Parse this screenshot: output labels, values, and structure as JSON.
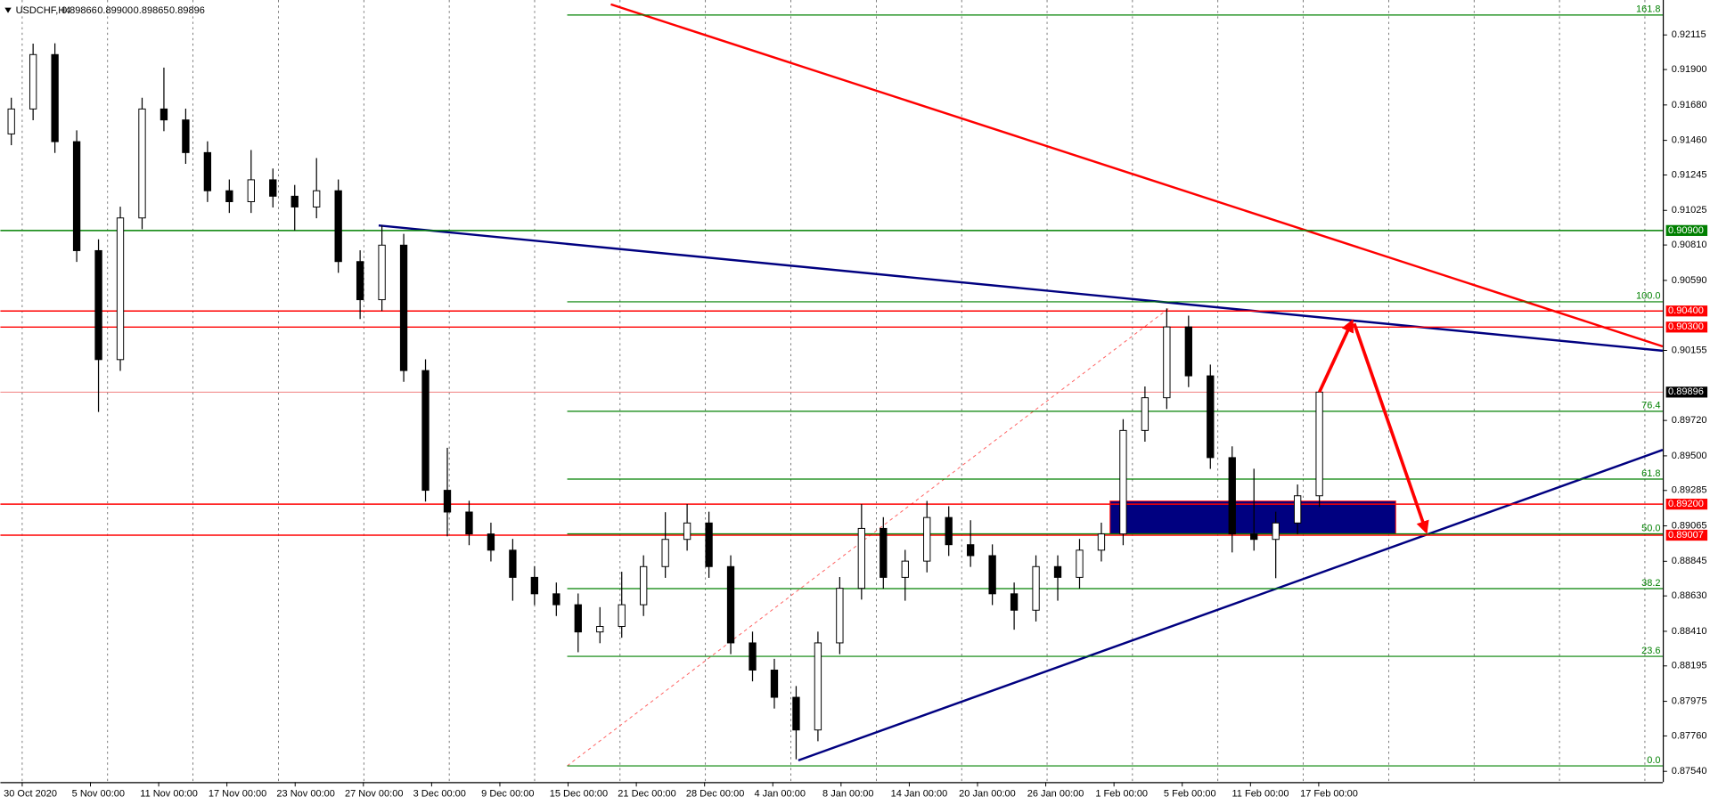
{
  "chart_data": {
    "type": "candlestick",
    "header": {
      "symbol": "USDCHF,H4",
      "quote": [
        "0.89866",
        "0.89900",
        "0.89865",
        "0.89896"
      ]
    },
    "categories": [
      "30 Oct 2020",
      "5 Nov 00:00",
      "11 Nov 00:00",
      "17 Nov 00:00",
      "23 Nov 00:00",
      "27 Nov 00:00",
      "3 Dec 00:00",
      "9 Dec 00:00",
      "15 Dec 00:00",
      "21 Dec 00:00",
      "28 Dec 00:00",
      "4 Jan 00:00",
      "8 Jan 00:00",
      "14 Jan 00:00",
      "20 Jan 00:00",
      "26 Jan 00:00",
      "1 Feb 00:00",
      "5 Feb 00:00",
      "11 Feb 00:00",
      "17 Feb 00:00"
    ],
    "open": [
      0.915,
      0.91655,
      0.91993,
      0.91452,
      0.90775,
      0.90098,
      0.90978,
      0.91655,
      0.91587,
      0.91384,
      0.91147,
      0.91079,
      0.91215,
      0.91113,
      0.91046,
      0.91147,
      0.90707,
      0.9047,
      0.90809,
      0.9003,
      0.89286,
      0.89151,
      0.89015,
      0.88914,
      0.88745,
      0.88643,
      0.88575,
      0.88406,
      0.8844,
      0.88575,
      0.88812,
      0.88981,
      0.89083,
      0.88812,
      0.88338,
      0.88169,
      0.88,
      0.87797,
      0.88338,
      0.88677,
      0.89049,
      0.88745,
      0.88846,
      0.89117,
      0.88948,
      0.8888,
      0.88643,
      0.88541,
      0.88812,
      0.88745,
      0.88914,
      0.89015,
      0.89658,
      0.89861,
      0.90301,
      0.89997,
      0.89489,
      0.89015,
      0.88981,
      0.89083,
      0.89252
    ],
    "high": [
      0.91725,
      0.92061,
      0.92063,
      0.91522,
      0.90845,
      0.91048,
      0.91725,
      0.91912,
      0.91657,
      0.91454,
      0.91217,
      0.914,
      0.91285,
      0.91183,
      0.9135,
      0.91217,
      0.90777,
      0.90931,
      0.90879,
      0.901,
      0.8955,
      0.89221,
      0.89085,
      0.88984,
      0.88815,
      0.88713,
      0.88645,
      0.8856,
      0.8878,
      0.88882,
      0.8915,
      0.892,
      0.89153,
      0.88882,
      0.88408,
      0.88239,
      0.8807,
      0.88408,
      0.88747,
      0.892,
      0.89119,
      0.88916,
      0.8922,
      0.89187,
      0.891,
      0.8895,
      0.88713,
      0.88882,
      0.88882,
      0.88984,
      0.89085,
      0.89728,
      0.89931,
      0.90416,
      0.90371,
      0.90067,
      0.89559,
      0.8942,
      0.89153,
      0.89322,
      0.899
    ],
    "low": [
      0.9143,
      0.91585,
      0.91382,
      0.90705,
      0.89773,
      0.90028,
      0.90908,
      0.91517,
      0.91314,
      0.91077,
      0.91009,
      0.91009,
      0.91043,
      0.909,
      0.90976,
      0.90637,
      0.9035,
      0.904,
      0.8996,
      0.89216,
      0.89,
      0.88945,
      0.88844,
      0.886,
      0.88573,
      0.88505,
      0.8828,
      0.88336,
      0.8837,
      0.88505,
      0.88742,
      0.88911,
      0.88742,
      0.88268,
      0.88099,
      0.8793,
      0.87615,
      0.87727,
      0.88268,
      0.88607,
      0.88675,
      0.886,
      0.88776,
      0.88878,
      0.8881,
      0.88573,
      0.8842,
      0.88471,
      0.886,
      0.88675,
      0.88844,
      0.88945,
      0.89588,
      0.89791,
      0.89927,
      0.89419,
      0.889,
      0.88911,
      0.8874,
      0.89013,
      0.89182
    ],
    "close": [
      0.91655,
      0.91993,
      0.91452,
      0.90775,
      0.90098,
      0.90978,
      0.91655,
      0.91587,
      0.91384,
      0.91147,
      0.91079,
      0.91215,
      0.91113,
      0.91046,
      0.91147,
      0.90707,
      0.9047,
      0.90809,
      0.9003,
      0.89286,
      0.89151,
      0.89015,
      0.88914,
      0.88745,
      0.88643,
      0.88575,
      0.88406,
      0.8844,
      0.88575,
      0.88812,
      0.88981,
      0.89083,
      0.88812,
      0.88338,
      0.88169,
      0.88,
      0.87797,
      0.88338,
      0.88677,
      0.89049,
      0.88745,
      0.88846,
      0.89117,
      0.88948,
      0.8888,
      0.88643,
      0.88541,
      0.88812,
      0.88745,
      0.88914,
      0.89015,
      0.89658,
      0.89861,
      0.90301,
      0.89997,
      0.89489,
      0.89015,
      0.88981,
      0.89083,
      0.89252,
      0.89896
    ],
    "ylim": [
      0.87473,
      0.92332
    ],
    "yticks": [
      0.92115,
      {
        "value": 0.919,
        "label": "0.91900"
      },
      {
        "value": 0.9168,
        "label": "0.91680"
      },
      {
        "value": 0.9146,
        "label": "0.91460"
      },
      0.91245,
      0.91025,
      {
        "value": 0.9081,
        "label": "0.90810"
      },
      {
        "value": 0.9059,
        "label": "0.90590"
      },
      0.90155,
      {
        "value": 0.8972,
        "label": "0.89720"
      },
      {
        "value": 0.895,
        "label": "0.89500"
      },
      0.89285,
      0.89065,
      0.88845,
      {
        "value": 0.8863,
        "label": "0.88630"
      },
      {
        "value": 0.8841,
        "label": "0.88410"
      },
      0.88195,
      0.87975,
      {
        "value": 0.8776,
        "label": "0.87760"
      },
      {
        "value": 0.8754,
        "label": "0.87540"
      }
    ],
    "levels": [
      {
        "value": 0.909,
        "label": "0.90900",
        "color": "#008000"
      },
      {
        "value": 0.904,
        "label": "0.90400",
        "color": "#ff0000"
      },
      {
        "value": 0.903,
        "label": "0.90300",
        "color": "#ff0000"
      },
      {
        "value": 0.892,
        "label": "0.89200",
        "color": "#ff0000"
      },
      {
        "value": 0.89007,
        "label": "0.89007",
        "color": "#ff0000"
      }
    ],
    "last_price": 0.89896,
    "fib": {
      "from": 0.87574,
      "to": 0.90457,
      "color": "#008000",
      "levels": [
        {
          "value": 0,
          "label": "0.0"
        },
        23.6,
        38.2,
        {
          "value": 50,
          "label": "50.0"
        },
        61.8,
        76.4,
        {
          "value": 100,
          "label": "100.0"
        },
        161.8
      ]
    },
    "bull_color": "#ffffff",
    "bear_color": "#000000"
  }
}
